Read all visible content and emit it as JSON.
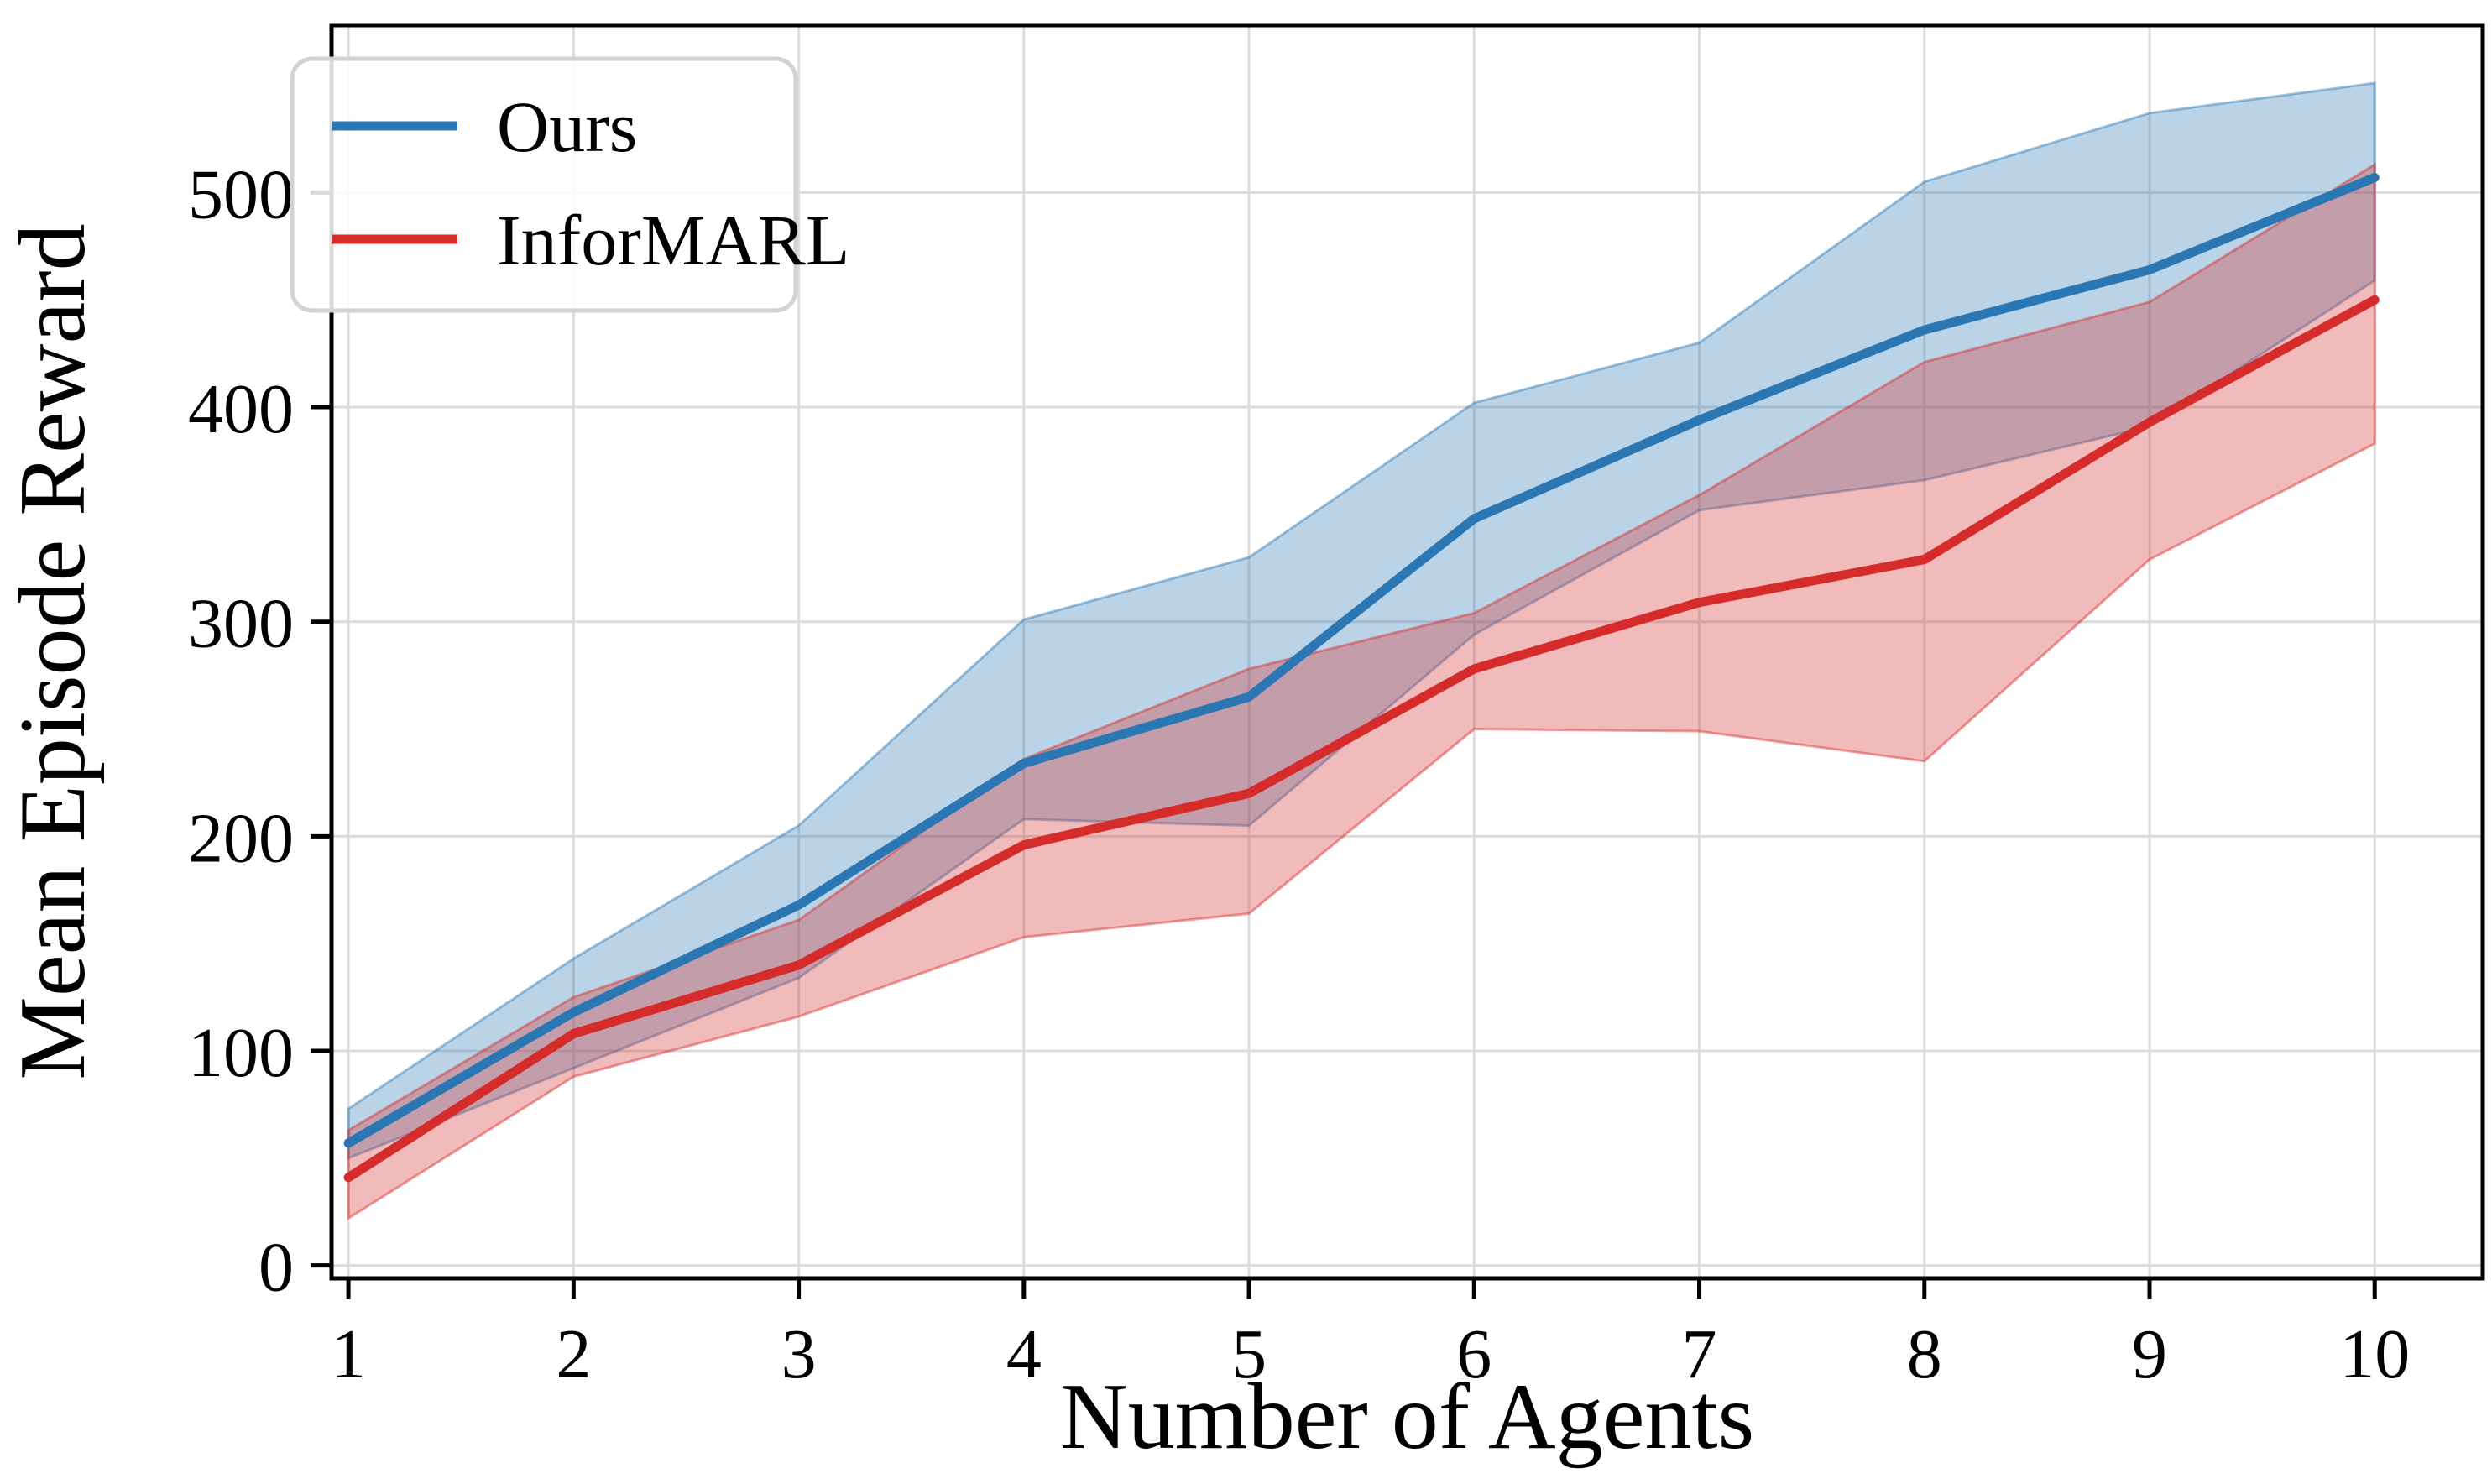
{
  "chart_data": {
    "type": "line",
    "title": "",
    "xlabel": "Number of Agents",
    "ylabel": "Mean Episode Reward",
    "x": [
      1,
      2,
      3,
      4,
      5,
      6,
      7,
      8,
      9,
      10
    ],
    "x_tick_labels": [
      "1",
      "2",
      "3",
      "4",
      "5",
      "6",
      "7",
      "8",
      "9",
      "10"
    ],
    "y_tick_values": [
      0,
      100,
      200,
      300,
      400,
      500
    ],
    "y_tick_labels": [
      "0",
      "100",
      "200",
      "300",
      "400",
      "500"
    ],
    "xlim": [
      0.925,
      10.48
    ],
    "ylim": [
      -6,
      578
    ],
    "grid": true,
    "grid_color": "#dcdcdc",
    "background_color": "#ffffff",
    "spine_color": "#000000",
    "legend_position": "upper left",
    "band_opacity": 0.32,
    "series": [
      {
        "name": "Ours",
        "color": "#2b77b4",
        "values": [
          57,
          118,
          168,
          234,
          265,
          348,
          394,
          436,
          464,
          507
        ],
        "band_low": [
          50,
          92,
          134,
          208,
          205,
          294,
          352,
          366,
          391,
          459
        ],
        "band_high": [
          73,
          143,
          205,
          301,
          330,
          402,
          430,
          505,
          537,
          551
        ]
      },
      {
        "name": "InforMARL",
        "color": "#d62b2b",
        "values": [
          41,
          108,
          140,
          196,
          220,
          278,
          309,
          329,
          393,
          450
        ],
        "band_low": [
          22,
          88,
          116,
          153,
          164,
          250,
          249,
          235,
          329,
          383
        ],
        "band_high": [
          63,
          125,
          161,
          236,
          278,
          304,
          359,
          421,
          449,
          513
        ]
      }
    ]
  }
}
